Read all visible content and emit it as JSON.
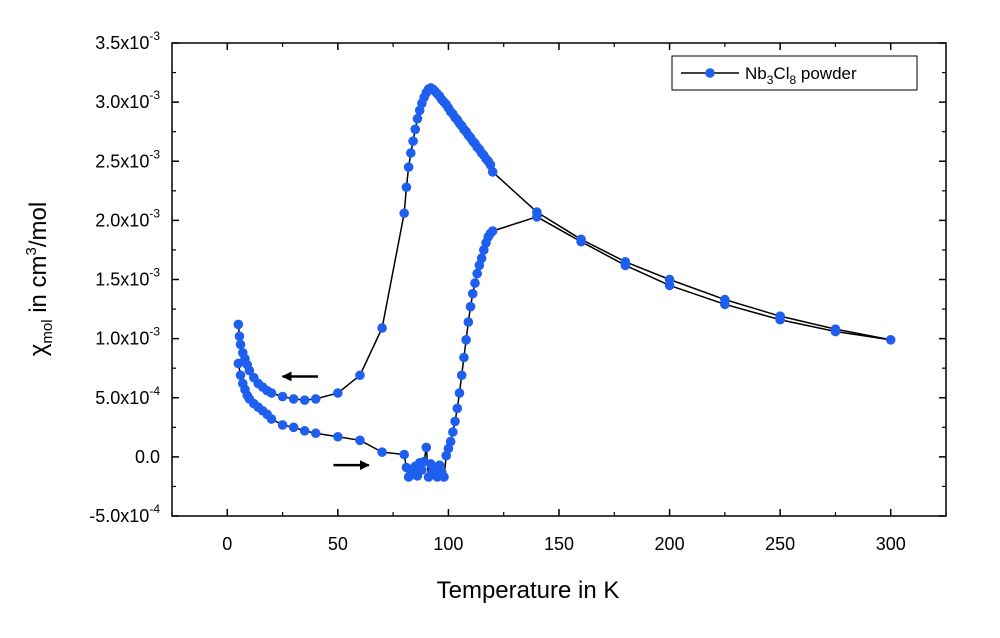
{
  "chart_data": {
    "type": "scatter",
    "title": "",
    "xlabel": "Temperature in K",
    "ylabel": {
      "prefix": "χ",
      "sub": "mol",
      "middle": " in cm",
      "sup": "3",
      "suffix": "/mol"
    },
    "xlim": [
      -25,
      325
    ],
    "ylim": [
      -0.0005,
      0.0035
    ],
    "x_ticks": [
      0,
      50,
      100,
      150,
      200,
      250,
      300
    ],
    "x_tick_labels": [
      "0",
      "50",
      "100",
      "150",
      "200",
      "250",
      "300"
    ],
    "y_ticks": [
      -0.0005,
      0,
      0.0005,
      0.001,
      0.0015,
      0.002,
      0.0025,
      0.003,
      0.0035
    ],
    "y_tick_labels": [
      {
        "mantissa": "-5.0x10",
        "exp": "-4"
      },
      {
        "mantissa": "0.0",
        "exp": ""
      },
      {
        "mantissa": "5.0x10",
        "exp": "-4"
      },
      {
        "mantissa": "1.0x10",
        "exp": "-3"
      },
      {
        "mantissa": "1.5x10",
        "exp": "-3"
      },
      {
        "mantissa": "2.0x10",
        "exp": "-3"
      },
      {
        "mantissa": "2.5x10",
        "exp": "-3"
      },
      {
        "mantissa": "3.0x10",
        "exp": "-3"
      },
      {
        "mantissa": "3.5x10",
        "exp": "-3"
      }
    ],
    "grid": false,
    "legend": {
      "position": "top-right",
      "label": {
        "part1": "Nb",
        "sub1": "3",
        "part2": "Cl",
        "sub2": "8",
        "part3": " powder"
      }
    },
    "series": [
      {
        "name": "Nb3Cl8 powder",
        "color": "#1f5ff0",
        "line_color": "#000000",
        "x": [
          5,
          5.5,
          6,
          7,
          8,
          9,
          10,
          12,
          14,
          16,
          18,
          20,
          25,
          30,
          35,
          40,
          50,
          60,
          70,
          80,
          81,
          82,
          83,
          84,
          85,
          86,
          87,
          88,
          89,
          90,
          91,
          92,
          93,
          94,
          95,
          96,
          97,
          98,
          99,
          100,
          101,
          102,
          103,
          104,
          105,
          106,
          107,
          108,
          109,
          110,
          111,
          112,
          113,
          114,
          115,
          116,
          117,
          118,
          119,
          120,
          140,
          160,
          180,
          200,
          225,
          250,
          275,
          300,
          275,
          250,
          225,
          200,
          180,
          160,
          140,
          120,
          119,
          118,
          117,
          116,
          115,
          114,
          113,
          112,
          111,
          110,
          109,
          108,
          107,
          106,
          105,
          104,
          103,
          102,
          101,
          100,
          99,
          98,
          97,
          96,
          95,
          94,
          93,
          92,
          91,
          90,
          89,
          88,
          87,
          86,
          85,
          84,
          83,
          82,
          81,
          80,
          70,
          60,
          50,
          40,
          35,
          30,
          25,
          20,
          18,
          16,
          14,
          12,
          10,
          9,
          8,
          7,
          6,
          5
        ],
        "y": [
          0.00112,
          0.00102,
          0.00095,
          0.00088,
          0.00083,
          0.00078,
          0.00073,
          0.00067,
          0.00062,
          0.00059,
          0.00056,
          0.00054,
          0.00051,
          0.00049,
          0.00048,
          0.00049,
          0.00054,
          0.00069,
          0.00109,
          0.00206,
          0.00228,
          0.00245,
          0.00257,
          0.00267,
          0.00277,
          0.00286,
          0.00293,
          0.00299,
          0.00304,
          0.00308,
          0.00311,
          0.00312,
          0.00311,
          0.00309,
          0.00307,
          0.00305,
          0.00302,
          0.003,
          0.00298,
          0.00295,
          0.00292,
          0.0029,
          0.00287,
          0.00285,
          0.00282,
          0.0028,
          0.00277,
          0.00275,
          0.00272,
          0.0027,
          0.00267,
          0.00265,
          0.00262,
          0.0026,
          0.00257,
          0.00255,
          0.00252,
          0.0025,
          0.00247,
          0.00241,
          0.00207,
          0.00184,
          0.00165,
          0.0015,
          0.00133,
          0.00119,
          0.00108,
          0.00099,
          0.00106,
          0.00116,
          0.00129,
          0.00145,
          0.00162,
          0.00182,
          0.00203,
          0.00191,
          0.00189,
          0.00186,
          0.00181,
          0.00175,
          0.00168,
          0.00162,
          0.00155,
          0.00147,
          0.00138,
          0.00127,
          0.00114,
          0.00099,
          0.00084,
          0.00069,
          0.00054,
          0.00041,
          0.0003,
          0.00021,
          0.00013,
          7e-05,
          1e-05,
          -0.00017,
          -0.00013,
          -7e-05,
          -0.00017,
          -9e-05,
          -0.00012,
          -6e-05,
          -0.00017,
          8e-05,
          -4e-05,
          -0.00011,
          -5e-05,
          -0.00016,
          -8e-05,
          -0.00015,
          -0.00011,
          -0.00017,
          -9e-05,
          2e-05,
          4e-05,
          0.00014,
          0.00017,
          0.0002,
          0.00022,
          0.00025,
          0.00027,
          0.00032,
          0.00036,
          0.00039,
          0.00042,
          0.00045,
          0.00049,
          0.00052,
          0.00057,
          0.00062,
          0.00069,
          0.00079
        ]
      }
    ],
    "annotations": [
      {
        "name": "cooling-arrow",
        "direction": "left",
        "x_from": 41,
        "x_to": 25,
        "y": 0.00068
      },
      {
        "name": "warming-arrow",
        "direction": "right",
        "x_from": 48,
        "x_to": 64,
        "y": -7e-05
      }
    ]
  }
}
